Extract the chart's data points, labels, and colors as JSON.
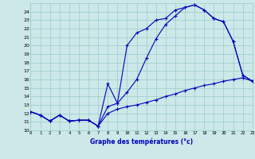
{
  "title": "Graphe des températures (°c)",
  "bg_color": "#cce8e8",
  "grid_color": "#99cccc",
  "line_color": "#0000bb",
  "xlim": [
    0,
    23
  ],
  "ylim": [
    10,
    25
  ],
  "xticks": [
    0,
    1,
    2,
    3,
    4,
    5,
    6,
    7,
    8,
    9,
    10,
    11,
    12,
    13,
    14,
    15,
    16,
    17,
    18,
    19,
    20,
    21,
    22,
    23
  ],
  "yticks": [
    10,
    11,
    12,
    13,
    14,
    15,
    16,
    17,
    18,
    19,
    20,
    21,
    22,
    23,
    24
  ],
  "line1_x": [
    0,
    1,
    2,
    3,
    4,
    5,
    6,
    7,
    8,
    9,
    10,
    11,
    12,
    13,
    14,
    15,
    16,
    17,
    18,
    19,
    20,
    21,
    22,
    23
  ],
  "line1_y": [
    12.2,
    11.8,
    11.1,
    11.8,
    11.1,
    11.2,
    11.2,
    10.5,
    15.5,
    13.2,
    20.0,
    21.5,
    22.0,
    23.0,
    23.2,
    24.2,
    24.5,
    24.8,
    24.2,
    23.2,
    22.8,
    20.5,
    16.5,
    15.8
  ],
  "line2_x": [
    0,
    1,
    2,
    3,
    4,
    5,
    6,
    7,
    8,
    9,
    10,
    11,
    12,
    13,
    14,
    15,
    16,
    17,
    18,
    19,
    20,
    21,
    22,
    23
  ],
  "line2_y": [
    12.2,
    11.8,
    11.1,
    11.8,
    11.1,
    11.2,
    11.2,
    10.5,
    12.8,
    13.2,
    14.5,
    16.0,
    18.5,
    20.8,
    22.5,
    23.5,
    24.5,
    24.8,
    24.2,
    23.2,
    22.8,
    20.5,
    16.5,
    15.8
  ],
  "line3_x": [
    0,
    1,
    2,
    3,
    4,
    5,
    6,
    7,
    8,
    9,
    10,
    11,
    12,
    13,
    14,
    15,
    16,
    17,
    18,
    19,
    20,
    21,
    22,
    23
  ],
  "line3_y": [
    12.2,
    11.8,
    11.1,
    11.8,
    11.1,
    11.2,
    11.2,
    10.5,
    12.0,
    12.5,
    12.8,
    13.0,
    13.3,
    13.6,
    14.0,
    14.3,
    14.7,
    15.0,
    15.3,
    15.5,
    15.8,
    16.0,
    16.2,
    15.8
  ]
}
